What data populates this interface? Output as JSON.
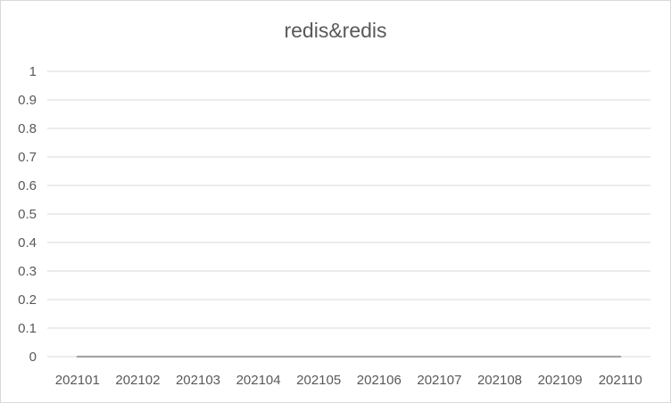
{
  "chart_data": {
    "type": "line",
    "title": "redis&redis",
    "xlabel": "",
    "ylabel": "",
    "categories": [
      "202101",
      "202102",
      "202103",
      "202104",
      "202105",
      "202106",
      "202107",
      "202108",
      "202109",
      "202110"
    ],
    "series": [
      {
        "values": [
          0,
          0,
          0,
          0,
          0,
          0,
          0,
          0,
          0,
          0
        ],
        "color": "#a5a5a5"
      }
    ],
    "ylim": [
      0,
      1
    ],
    "yticks": [
      "0",
      "0.1",
      "0.2",
      "0.3",
      "0.4",
      "0.5",
      "0.6",
      "0.7",
      "0.8",
      "0.9",
      "1"
    ],
    "grid": true,
    "legend": "none",
    "gridline_color": "#d9d9d9",
    "text_color": "#595959"
  }
}
